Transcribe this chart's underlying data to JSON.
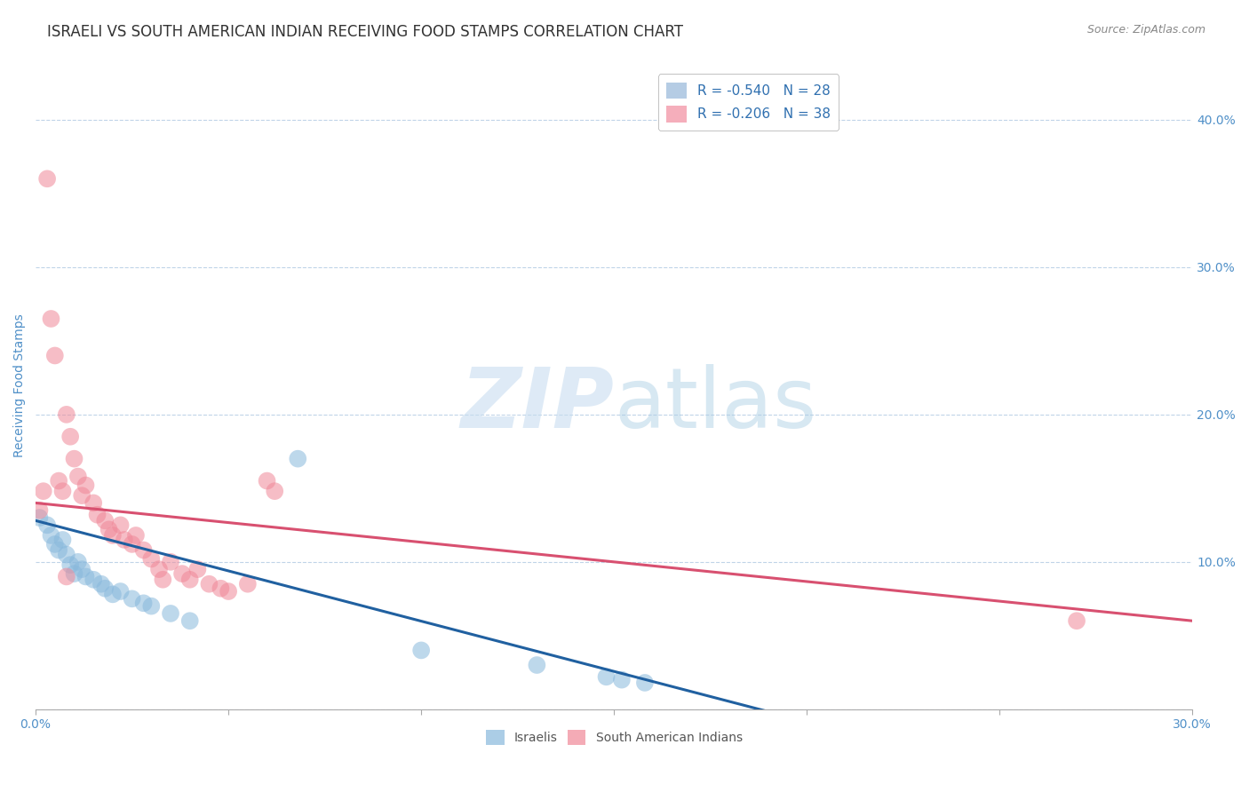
{
  "title": "ISRAELI VS SOUTH AMERICAN INDIAN RECEIVING FOOD STAMPS CORRELATION CHART",
  "source": "Source: ZipAtlas.com",
  "ylabel": "Receiving Food Stamps",
  "right_yticks": [
    0.0,
    0.1,
    0.2,
    0.3,
    0.4
  ],
  "right_yticklabels": [
    "",
    "10.0%",
    "20.0%",
    "30.0%",
    "40.0%"
  ],
  "xlim": [
    0.0,
    0.3
  ],
  "ylim": [
    0.0,
    0.44
  ],
  "legend_entries": [
    {
      "label": "R = -0.540   N = 28",
      "color": "#a8c4e0"
    },
    {
      "label": "R = -0.206   N = 38",
      "color": "#f4a0b0"
    }
  ],
  "background_color": "#ffffff",
  "grid_color": "#c0d4e8",
  "title_color": "#333333",
  "axis_label_color": "#5090c8",
  "israeli_color": "#88b8dc",
  "south_american_color": "#f08898",
  "israeli_scatter": [
    [
      0.001,
      0.13
    ],
    [
      0.003,
      0.125
    ],
    [
      0.004,
      0.118
    ],
    [
      0.005,
      0.112
    ],
    [
      0.006,
      0.108
    ],
    [
      0.007,
      0.115
    ],
    [
      0.008,
      0.105
    ],
    [
      0.009,
      0.098
    ],
    [
      0.01,
      0.092
    ],
    [
      0.011,
      0.1
    ],
    [
      0.012,
      0.095
    ],
    [
      0.013,
      0.09
    ],
    [
      0.015,
      0.088
    ],
    [
      0.017,
      0.085
    ],
    [
      0.018,
      0.082
    ],
    [
      0.02,
      0.078
    ],
    [
      0.022,
      0.08
    ],
    [
      0.025,
      0.075
    ],
    [
      0.028,
      0.072
    ],
    [
      0.03,
      0.07
    ],
    [
      0.035,
      0.065
    ],
    [
      0.04,
      0.06
    ],
    [
      0.068,
      0.17
    ],
    [
      0.1,
      0.04
    ],
    [
      0.13,
      0.03
    ],
    [
      0.148,
      0.022
    ],
    [
      0.152,
      0.02
    ],
    [
      0.158,
      0.018
    ]
  ],
  "south_american_scatter": [
    [
      0.001,
      0.135
    ],
    [
      0.002,
      0.148
    ],
    [
      0.003,
      0.36
    ],
    [
      0.004,
      0.265
    ],
    [
      0.005,
      0.24
    ],
    [
      0.006,
      0.155
    ],
    [
      0.007,
      0.148
    ],
    [
      0.008,
      0.2
    ],
    [
      0.009,
      0.185
    ],
    [
      0.01,
      0.17
    ],
    [
      0.011,
      0.158
    ],
    [
      0.012,
      0.145
    ],
    [
      0.013,
      0.152
    ],
    [
      0.015,
      0.14
    ],
    [
      0.016,
      0.132
    ],
    [
      0.018,
      0.128
    ],
    [
      0.019,
      0.122
    ],
    [
      0.02,
      0.118
    ],
    [
      0.022,
      0.125
    ],
    [
      0.023,
      0.115
    ],
    [
      0.025,
      0.112
    ],
    [
      0.026,
      0.118
    ],
    [
      0.028,
      0.108
    ],
    [
      0.03,
      0.102
    ],
    [
      0.032,
      0.095
    ],
    [
      0.033,
      0.088
    ],
    [
      0.035,
      0.1
    ],
    [
      0.038,
      0.092
    ],
    [
      0.04,
      0.088
    ],
    [
      0.042,
      0.095
    ],
    [
      0.045,
      0.085
    ],
    [
      0.048,
      0.082
    ],
    [
      0.05,
      0.08
    ],
    [
      0.055,
      0.085
    ],
    [
      0.06,
      0.155
    ],
    [
      0.062,
      0.148
    ],
    [
      0.27,
      0.06
    ],
    [
      0.008,
      0.09
    ]
  ],
  "israeli_regression": {
    "x_start": 0.0,
    "y_start": 0.128,
    "x_end": 0.195,
    "y_end": -0.005
  },
  "south_american_regression": {
    "x_start": 0.0,
    "y_start": 0.14,
    "x_end": 0.3,
    "y_end": 0.06
  },
  "title_fontsize": 12,
  "axis_label_fontsize": 10,
  "tick_fontsize": 10,
  "legend_fontsize": 11
}
